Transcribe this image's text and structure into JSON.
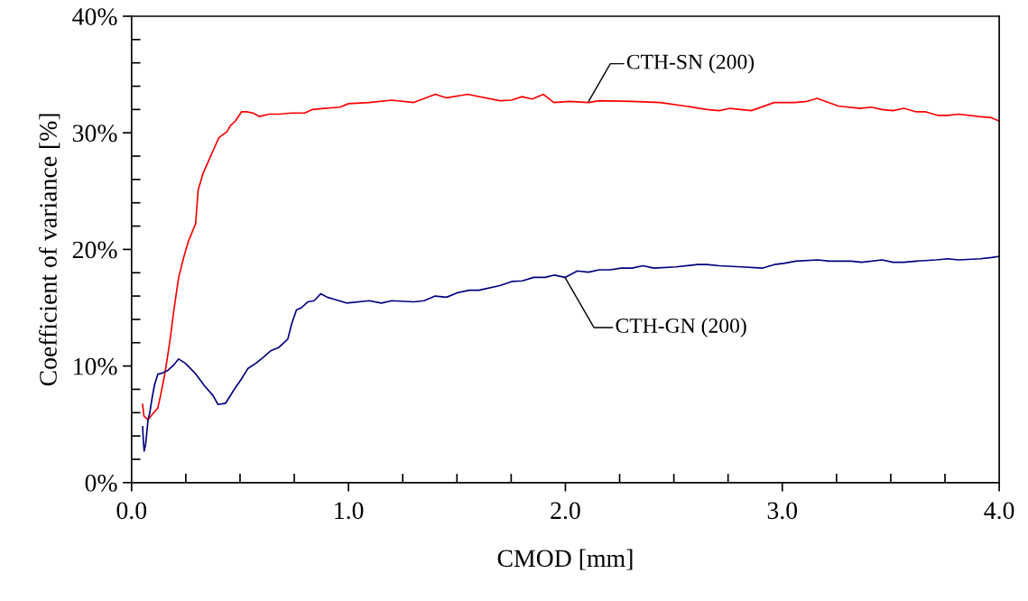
{
  "chart_data": {
    "type": "line",
    "xlabel": "CMOD [mm]",
    "ylabel": "Coefficient of variance [%]",
    "xlim": [
      0,
      4
    ],
    "ylim": [
      0,
      40
    ],
    "xticks": [
      {
        "value": 0,
        "label": "0.0"
      },
      {
        "value": 1,
        "label": "1.0"
      },
      {
        "value": 2,
        "label": "2.0"
      },
      {
        "value": 3,
        "label": "3.0"
      },
      {
        "value": 4,
        "label": "4.0"
      }
    ],
    "yticks": [
      {
        "value": 0,
        "label": "0%"
      },
      {
        "value": 10,
        "label": "10%"
      },
      {
        "value": 20,
        "label": "20%"
      },
      {
        "value": 30,
        "label": "30%"
      },
      {
        "value": 40,
        "label": "40%"
      }
    ],
    "grid": false,
    "marker": "none",
    "line_style": "solid",
    "annotations": [
      {
        "text": "CTH-SN (200)",
        "x": 2.107,
        "y": 32.7
      },
      {
        "text": "CTH-GN (200)",
        "x": 1.998,
        "y": 17.6
      }
    ],
    "series": [
      {
        "color": "#ff0000",
        "x": [
          0.051,
          0.057,
          0.076,
          0.098,
          0.121,
          0.135,
          0.15,
          0.165,
          0.18,
          0.195,
          0.217,
          0.24,
          0.262,
          0.295,
          0.307,
          0.329,
          0.348,
          0.381,
          0.403,
          0.44,
          0.455,
          0.478,
          0.507,
          0.53,
          0.56,
          0.589,
          0.634,
          0.679,
          0.738,
          0.798,
          0.835,
          0.887,
          0.961,
          1.0,
          1.095,
          1.199,
          1.301,
          1.4,
          1.452,
          1.549,
          1.698,
          1.75,
          1.801,
          1.846,
          1.899,
          1.947,
          2.018,
          2.106,
          2.156,
          2.307,
          2.437,
          2.551,
          2.653,
          2.71,
          2.76,
          2.857,
          2.963,
          3.056,
          3.114,
          3.16,
          3.258,
          3.359,
          3.409,
          3.46,
          3.51,
          3.56,
          3.618,
          3.661,
          3.716,
          3.762,
          3.813,
          3.906,
          3.964,
          4.0
        ],
        "values": [
          6.7,
          5.7,
          5.4,
          5.9,
          6.4,
          7.6,
          9.0,
          10.7,
          12.6,
          14.8,
          17.6,
          19.3,
          20.7,
          22.2,
          25.1,
          26.5,
          27.3,
          28.7,
          29.6,
          30.1,
          30.6,
          31.0,
          31.8,
          31.8,
          31.7,
          31.4,
          31.6,
          31.6,
          31.7,
          31.7,
          32.0,
          32.1,
          32.2,
          32.5,
          32.6,
          32.8,
          32.6,
          33.3,
          33.0,
          33.3,
          32.75,
          32.8,
          33.1,
          32.9,
          33.3,
          32.6,
          32.7,
          32.6,
          32.75,
          32.7,
          32.6,
          32.3,
          32.0,
          31.9,
          32.1,
          31.9,
          32.6,
          32.6,
          32.7,
          32.95,
          32.3,
          32.1,
          32.2,
          32.0,
          31.9,
          32.1,
          31.8,
          31.8,
          31.5,
          31.5,
          31.6,
          31.4,
          31.3,
          31.0
        ]
      },
      {
        "color": "#000080",
        "x": [
          0.051,
          0.054,
          0.058,
          0.065,
          0.076,
          0.083,
          0.095,
          0.106,
          0.121,
          0.143,
          0.165,
          0.195,
          0.217,
          0.247,
          0.292,
          0.336,
          0.374,
          0.399,
          0.433,
          0.47,
          0.507,
          0.537,
          0.574,
          0.604,
          0.641,
          0.679,
          0.72,
          0.738,
          0.76,
          0.783,
          0.812,
          0.842,
          0.872,
          0.902,
          0.939,
          0.991,
          1.095,
          1.152,
          1.199,
          1.301,
          1.348,
          1.4,
          1.452,
          1.504,
          1.557,
          1.601,
          1.698,
          1.753,
          1.801,
          1.854,
          1.906,
          1.95,
          1.998,
          2.055,
          2.106,
          2.156,
          2.206,
          2.257,
          2.307,
          2.358,
          2.408,
          2.509,
          2.61,
          2.653,
          2.71,
          2.811,
          2.91,
          2.963,
          3.006,
          3.063,
          3.164,
          3.215,
          3.316,
          3.366,
          3.46,
          3.51,
          3.56,
          3.618,
          3.711,
          3.762,
          3.813,
          3.913,
          3.964,
          4.0
        ],
        "values": [
          4.8,
          3.7,
          2.7,
          3.3,
          5.4,
          5.9,
          7.3,
          8.4,
          9.3,
          9.4,
          9.6,
          10.1,
          10.6,
          10.25,
          9.4,
          8.3,
          7.5,
          6.7,
          6.8,
          7.9,
          8.9,
          9.8,
          10.25,
          10.7,
          11.3,
          11.6,
          12.3,
          13.6,
          14.8,
          15.0,
          15.5,
          15.6,
          16.2,
          15.9,
          15.7,
          15.4,
          15.6,
          15.4,
          15.6,
          15.5,
          15.6,
          16.0,
          15.9,
          16.3,
          16.5,
          16.5,
          16.9,
          17.25,
          17.3,
          17.6,
          17.6,
          17.8,
          17.6,
          18.15,
          18.05,
          18.25,
          18.25,
          18.4,
          18.4,
          18.6,
          18.4,
          18.5,
          18.7,
          18.7,
          18.6,
          18.5,
          18.4,
          18.7,
          18.8,
          19.0,
          19.1,
          19.0,
          19.0,
          18.9,
          19.1,
          18.9,
          18.9,
          19.0,
          19.1,
          19.2,
          19.1,
          19.2,
          19.3,
          19.4
        ]
      }
    ]
  }
}
